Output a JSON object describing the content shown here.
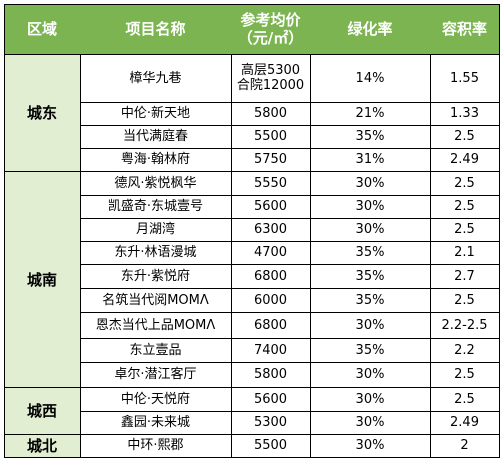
{
  "headers": {
    "region": "区域",
    "name": "项目名称",
    "price_line1": "参考均价",
    "price_line2": "（元/㎡）",
    "green": "绿化率",
    "far": "容积率"
  },
  "regions": [
    {
      "label": "城东"
    },
    {
      "label": "城南"
    },
    {
      "label": "城西"
    },
    {
      "label": "城北"
    }
  ],
  "rows": [
    {
      "name": "樟华九巷",
      "price": "高层5300",
      "price2": "合院12000",
      "green": "14%",
      "far": "1.55"
    },
    {
      "name": "中伦·新天地",
      "price": "5800",
      "green": "21%",
      "far": "1.33"
    },
    {
      "name": "当代满庭春",
      "price": "5500",
      "green": "35%",
      "far": "2.5"
    },
    {
      "name": "粤海·翰林府",
      "price": "5750",
      "green": "31%",
      "far": "2.49"
    },
    {
      "name": "德风·紫悦枫华",
      "price": "5550",
      "green": "30%",
      "far": "2.5"
    },
    {
      "name": "凯盛奇·东城壹号",
      "price": "5600",
      "green": "30%",
      "far": "2.5"
    },
    {
      "name": "月湖湾",
      "price": "6300",
      "green": "30%",
      "far": "2.5"
    },
    {
      "name": "东升·林语漫城",
      "price": "4700",
      "green": "35%",
      "far": "2.1"
    },
    {
      "name": "东升·紫悦府",
      "price": "6800",
      "green": "35%",
      "far": "2.7"
    },
    {
      "name": "名筑当代阅MOMΛ",
      "price": "6000",
      "green": "35%",
      "far": "2.5"
    },
    {
      "name": "恩杰当代上品MOMΛ",
      "price": "6800",
      "green": "30%",
      "far": "2.2-2.5"
    },
    {
      "name": "东立壹品",
      "price": "7400",
      "green": "35%",
      "far": "2.2"
    },
    {
      "name": "卓尔·潜江客厅",
      "price": "5800",
      "green": "30%",
      "far": "2.5"
    },
    {
      "name": "中伦·天悦府",
      "price": "5600",
      "green": "30%",
      "far": "2.5"
    },
    {
      "name": "鑫园·未来城",
      "price": "5300",
      "green": "30%",
      "far": "2.49"
    },
    {
      "name": "中环·熙郡",
      "price": "5500",
      "green": "30%",
      "far": "2"
    }
  ]
}
